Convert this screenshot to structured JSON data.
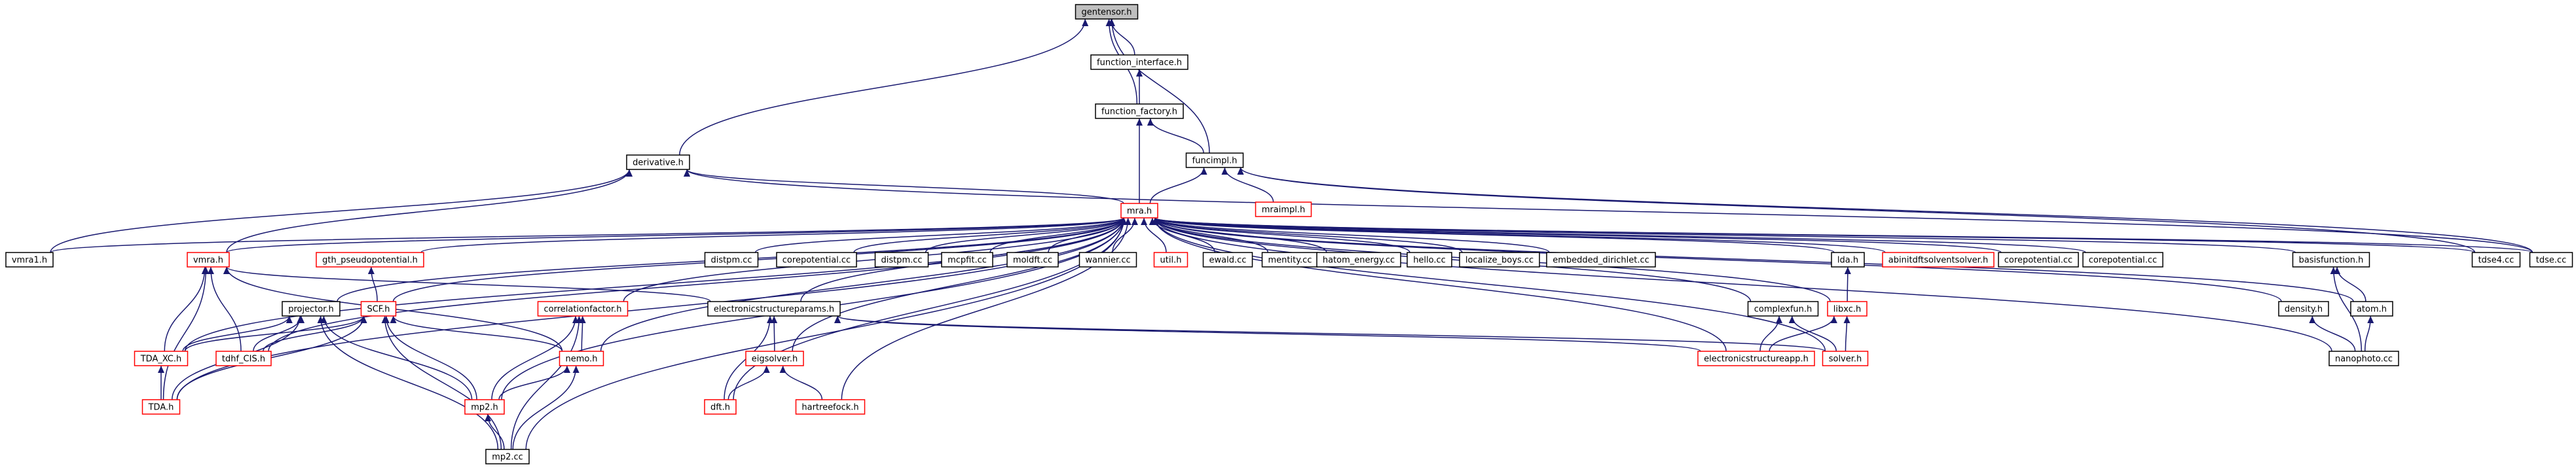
{
  "graph": {
    "title": "",
    "edge_color": "#191970",
    "node_border": "#000000",
    "incomplete_node_border": "#ff0000",
    "root_fill": "#bfbfbf",
    "nodes": [
      {
        "id": "gentensor",
        "label": "gentensor.h",
        "style": "root"
      },
      {
        "id": "function_interface",
        "label": "function_interface.h",
        "style": "normal"
      },
      {
        "id": "function_factory",
        "label": "function_factory.h",
        "style": "normal"
      },
      {
        "id": "derivative",
        "label": "derivative.h",
        "style": "normal"
      },
      {
        "id": "funcimpl",
        "label": "funcimpl.h",
        "style": "normal"
      },
      {
        "id": "mraimpl",
        "label": "mraimpl.h",
        "style": "red"
      },
      {
        "id": "mra",
        "label": "mra.h",
        "style": "red"
      },
      {
        "id": "vmra1",
        "label": "vmra1.h",
        "style": "normal"
      },
      {
        "id": "vmra",
        "label": "vmra.h",
        "style": "red"
      },
      {
        "id": "gth",
        "label": "gth_pseudopotential.h",
        "style": "red"
      },
      {
        "id": "distpm_a",
        "label": "distpm.cc",
        "style": "normal"
      },
      {
        "id": "corepotential_a",
        "label": "corepotential.cc",
        "style": "normal"
      },
      {
        "id": "distpm_b",
        "label": "distpm.cc",
        "style": "normal"
      },
      {
        "id": "mcpfit",
        "label": "mcpfit.cc",
        "style": "normal"
      },
      {
        "id": "moldft",
        "label": "moldft.cc",
        "style": "normal"
      },
      {
        "id": "wannier",
        "label": "wannier.cc",
        "style": "normal"
      },
      {
        "id": "util",
        "label": "util.h",
        "style": "red"
      },
      {
        "id": "ewald",
        "label": "ewald.cc",
        "style": "normal"
      },
      {
        "id": "mentity",
        "label": "mentity.cc",
        "style": "normal"
      },
      {
        "id": "hatom",
        "label": "hatom_energy.cc",
        "style": "normal"
      },
      {
        "id": "hello",
        "label": "hello.cc",
        "style": "normal"
      },
      {
        "id": "localize",
        "label": "localize_boys.cc",
        "style": "normal"
      },
      {
        "id": "embedded",
        "label": "embedded_dirichlet.cc",
        "style": "normal"
      },
      {
        "id": "lda",
        "label": "lda.h",
        "style": "normal"
      },
      {
        "id": "abinitdft",
        "label": "abinitdftsolventsolver.h",
        "style": "red"
      },
      {
        "id": "corepotential_b",
        "label": "corepotential.cc",
        "style": "normal"
      },
      {
        "id": "corepotential_c",
        "label": "corepotential.cc",
        "style": "normal"
      },
      {
        "id": "basisfunction",
        "label": "basisfunction.h",
        "style": "normal"
      },
      {
        "id": "tdse4",
        "label": "tdse4.cc",
        "style": "normal"
      },
      {
        "id": "tdse",
        "label": "tdse.cc",
        "style": "normal"
      },
      {
        "id": "projector",
        "label": "projector.h",
        "style": "normal"
      },
      {
        "id": "scf",
        "label": "SCF.h",
        "style": "red"
      },
      {
        "id": "correlationfactor",
        "label": "correlationfactor.h",
        "style": "red"
      },
      {
        "id": "ecparams",
        "label": "electronicstructureparams.h",
        "style": "normal"
      },
      {
        "id": "complexfun",
        "label": "complexfun.h",
        "style": "normal"
      },
      {
        "id": "libxc",
        "label": "libxc.h",
        "style": "red"
      },
      {
        "id": "density",
        "label": "density.h",
        "style": "normal"
      },
      {
        "id": "atom",
        "label": "atom.h",
        "style": "normal"
      },
      {
        "id": "tda_xc",
        "label": "TDA_XC.h",
        "style": "red"
      },
      {
        "id": "tdhf_cis",
        "label": "tdhf_CIS.h",
        "style": "red"
      },
      {
        "id": "nemo",
        "label": "nemo.h",
        "style": "red"
      },
      {
        "id": "eigsolver",
        "label": "eigsolver.h",
        "style": "red"
      },
      {
        "id": "ecapp",
        "label": "electronicstructureapp.h",
        "style": "red"
      },
      {
        "id": "solver",
        "label": "solver.h",
        "style": "red"
      },
      {
        "id": "nanophoto",
        "label": "nanophoto.cc",
        "style": "normal"
      },
      {
        "id": "tda",
        "label": "TDA.h",
        "style": "red"
      },
      {
        "id": "mp2h",
        "label": "mp2.h",
        "style": "red"
      },
      {
        "id": "dft",
        "label": "dft.h",
        "style": "red"
      },
      {
        "id": "hartreefock",
        "label": "hartreefock.h",
        "style": "red"
      },
      {
        "id": "mp2cc",
        "label": "mp2.cc",
        "style": "normal"
      }
    ],
    "edges": [
      [
        "function_interface",
        "gentensor"
      ],
      [
        "function_factory",
        "function_interface"
      ],
      [
        "function_factory",
        "gentensor"
      ],
      [
        "derivative",
        "gentensor"
      ],
      [
        "funcimpl",
        "gentensor"
      ],
      [
        "funcimpl",
        "function_factory"
      ],
      [
        "mra",
        "function_factory"
      ],
      [
        "mra",
        "derivative"
      ],
      [
        "mra",
        "funcimpl"
      ],
      [
        "mraimpl",
        "funcimpl"
      ],
      [
        "vmra1",
        "derivative"
      ],
      [
        "vmra",
        "derivative"
      ],
      [
        "tdse",
        "derivative"
      ],
      [
        "tdse",
        "funcimpl"
      ],
      [
        "tdse4",
        "funcimpl"
      ],
      [
        "vmra1",
        "mra"
      ],
      [
        "vmra",
        "mra"
      ],
      [
        "gth",
        "mra"
      ],
      [
        "distpm_a",
        "mra"
      ],
      [
        "corepotential_a",
        "mra"
      ],
      [
        "distpm_b",
        "mra"
      ],
      [
        "mcpfit",
        "mra"
      ],
      [
        "moldft",
        "mra"
      ],
      [
        "wannier",
        "mra"
      ],
      [
        "util",
        "mra"
      ],
      [
        "ewald",
        "mra"
      ],
      [
        "mentity",
        "mra"
      ],
      [
        "hatom",
        "mra"
      ],
      [
        "hello",
        "mra"
      ],
      [
        "localize",
        "mra"
      ],
      [
        "embedded",
        "mra"
      ],
      [
        "lda",
        "mra"
      ],
      [
        "abinitdft",
        "mra"
      ],
      [
        "corepotential_b",
        "mra"
      ],
      [
        "corepotential_c",
        "mra"
      ],
      [
        "basisfunction",
        "mra"
      ],
      [
        "tdse4",
        "mra"
      ],
      [
        "tdse",
        "mra"
      ],
      [
        "projector",
        "mra"
      ],
      [
        "scf",
        "mra"
      ],
      [
        "correlationfactor",
        "mra"
      ],
      [
        "ecparams",
        "mra"
      ],
      [
        "complexfun",
        "mra"
      ],
      [
        "libxc",
        "mra"
      ],
      [
        "density",
        "mra"
      ],
      [
        "atom",
        "mra"
      ],
      [
        "tda_xc",
        "mra"
      ],
      [
        "tdhf_cis",
        "mra"
      ],
      [
        "nemo",
        "mra"
      ],
      [
        "eigsolver",
        "mra"
      ],
      [
        "ecapp",
        "mra"
      ],
      [
        "solver",
        "mra"
      ],
      [
        "nanophoto",
        "mra"
      ],
      [
        "tda",
        "mra"
      ],
      [
        "mp2h",
        "mra"
      ],
      [
        "dft",
        "mra"
      ],
      [
        "hartreefock",
        "mra"
      ],
      [
        "mp2cc",
        "mra"
      ],
      [
        "tda_xc",
        "vmra"
      ],
      [
        "tdhf_cis",
        "vmra"
      ],
      [
        "tda",
        "vmra"
      ],
      [
        "nemo",
        "vmra"
      ],
      [
        "ecparams",
        "vmra"
      ],
      [
        "scf",
        "gth"
      ],
      [
        "tda_xc",
        "projector"
      ],
      [
        "tdhf_cis",
        "projector"
      ],
      [
        "tda",
        "projector"
      ],
      [
        "mp2h",
        "projector"
      ],
      [
        "mp2cc",
        "projector"
      ],
      [
        "tda_xc",
        "scf"
      ],
      [
        "tdhf_cis",
        "scf"
      ],
      [
        "tda",
        "scf"
      ],
      [
        "nemo",
        "scf"
      ],
      [
        "mp2h",
        "scf"
      ],
      [
        "mp2cc",
        "scf"
      ],
      [
        "nemo",
        "correlationfactor"
      ],
      [
        "mp2h",
        "correlationfactor"
      ],
      [
        "mp2cc",
        "correlationfactor"
      ],
      [
        "eigsolver",
        "ecparams"
      ],
      [
        "dft",
        "ecparams"
      ],
      [
        "ecapp",
        "ecparams"
      ],
      [
        "solver",
        "ecparams"
      ],
      [
        "ecapp",
        "complexfun"
      ],
      [
        "solver",
        "complexfun"
      ],
      [
        "solver",
        "libxc"
      ],
      [
        "ecapp",
        "libxc"
      ],
      [
        "libxc",
        "lda"
      ],
      [
        "nanophoto",
        "density"
      ],
      [
        "nanophoto",
        "basisfunction"
      ],
      [
        "nanophoto",
        "atom"
      ],
      [
        "atom",
        "basisfunction"
      ],
      [
        "tda",
        "tda_xc"
      ],
      [
        "mp2h",
        "nemo"
      ],
      [
        "mp2cc",
        "nemo"
      ],
      [
        "mp2cc",
        "mp2h"
      ],
      [
        "dft",
        "eigsolver"
      ],
      [
        "hartreefock",
        "eigsolver"
      ]
    ]
  }
}
